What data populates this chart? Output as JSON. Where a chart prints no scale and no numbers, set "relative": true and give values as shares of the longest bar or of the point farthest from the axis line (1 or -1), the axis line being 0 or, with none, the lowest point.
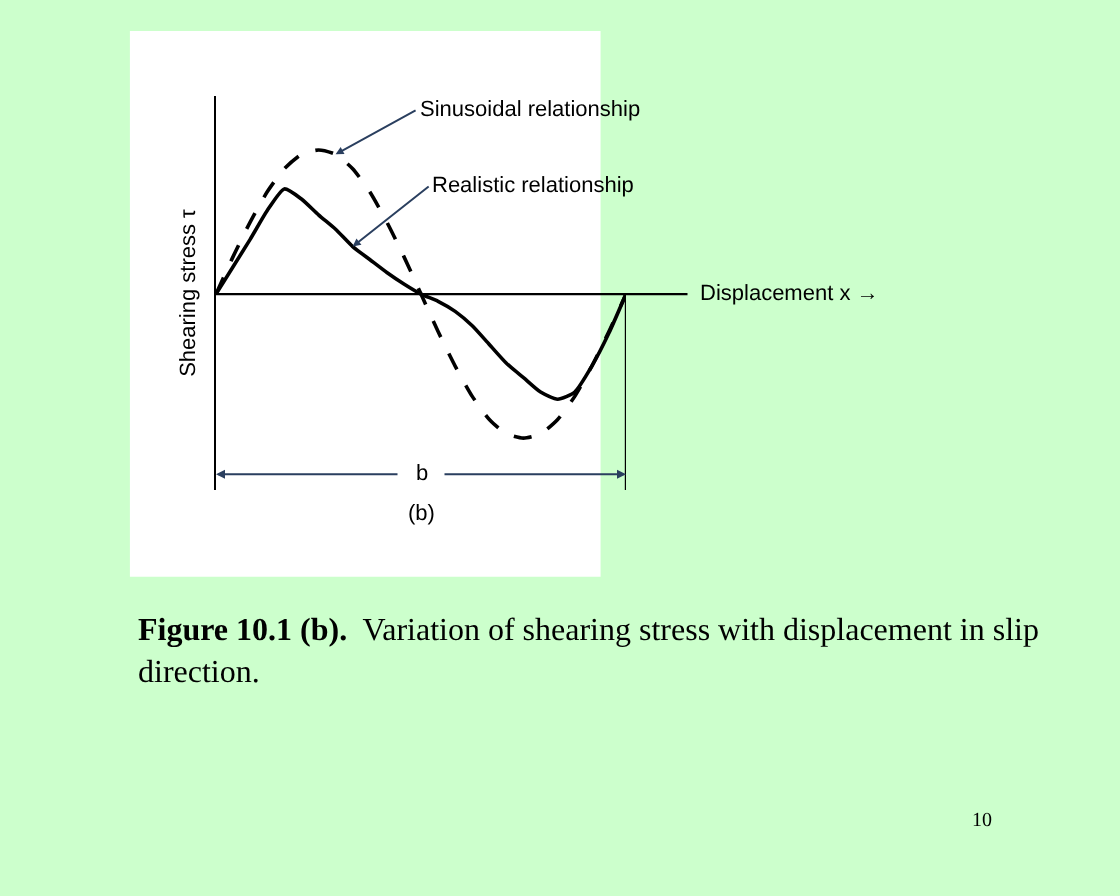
{
  "chart_data": {
    "type": "line",
    "relative": true,
    "ylabel": "Shearing stress τ",
    "xlabel": "Displacement x →",
    "categories": [
      null,
      null,
      null,
      null,
      null,
      null,
      null,
      null,
      null,
      null,
      null,
      null,
      null,
      null,
      null,
      null,
      null,
      null,
      null,
      null,
      null,
      null,
      null,
      null,
      null
    ],
    "series": [
      {
        "name": "Sinusoidal relationship",
        "color": "#000000",
        "line_style": "dashed",
        "values": [
          0,
          0.26,
          0.5,
          0.71,
          0.87,
          0.97,
          1,
          0.97,
          0.87,
          0.71,
          0.5,
          0.26,
          0,
          -0.26,
          -0.5,
          -0.71,
          -0.87,
          -0.97,
          -1,
          -0.97,
          -0.87,
          -0.71,
          -0.5,
          -0.26,
          0
        ]
      },
      {
        "name": "Realistic relationship",
        "color": "#000000",
        "line_style": "solid",
        "values": [
          0,
          0.19,
          0.38,
          0.58,
          0.73,
          0.66,
          0.55,
          0.45,
          0.33,
          0.24,
          0.15,
          0.07,
          0,
          -0.05,
          -0.12,
          -0.22,
          -0.35,
          -0.48,
          -0.58,
          -0.68,
          -0.73,
          -0.68,
          -0.5,
          -0.27,
          0
        ]
      }
    ],
    "annotations": [
      "b",
      "(b)",
      "Figure 10.1 (b).  Variation of shearing stress with displacement in slip direction.",
      "10"
    ],
    "grid": false,
    "legend": false,
    "marker": "none"
  }
}
